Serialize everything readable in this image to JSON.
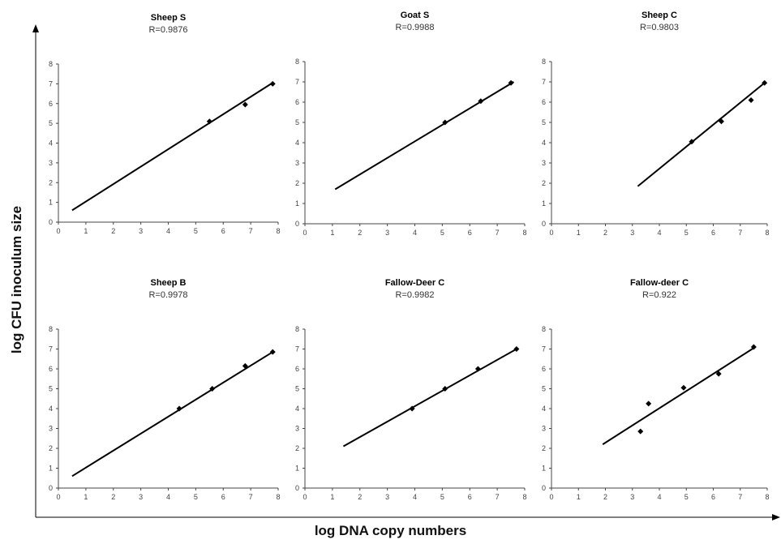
{
  "figure": {
    "ylabel": "log CFU inoculum size",
    "xlabel": "log DNA copy numbers"
  },
  "chart_data": [
    {
      "type": "scatter",
      "title": "Sheep S",
      "subtitle": "R=0.9876",
      "xlim": [
        0,
        8
      ],
      "ylim": [
        0,
        8
      ],
      "xticks": [
        0,
        1,
        2,
        3,
        4,
        5,
        6,
        7,
        8
      ],
      "yticks": [
        0,
        1,
        2,
        3,
        4,
        5,
        6,
        7,
        8
      ],
      "points": [
        [
          5.5,
          5.1
        ],
        [
          6.8,
          5.95
        ],
        [
          7.8,
          7.0
        ]
      ],
      "trendline": [
        [
          0.5,
          0.6
        ],
        [
          7.8,
          7.05
        ]
      ]
    },
    {
      "type": "scatter",
      "title": "Goat S",
      "subtitle": "R=0.9988",
      "xlim": [
        0,
        8
      ],
      "ylim": [
        0,
        8
      ],
      "xticks": [
        0,
        1,
        2,
        3,
        4,
        5,
        6,
        7,
        8
      ],
      "yticks": [
        0,
        1,
        2,
        3,
        4,
        5,
        6,
        7,
        8
      ],
      "points": [
        [
          5.1,
          5.0
        ],
        [
          6.4,
          6.05
        ],
        [
          7.5,
          6.95
        ]
      ],
      "trendline": [
        [
          1.1,
          1.7
        ],
        [
          7.6,
          7.0
        ]
      ]
    },
    {
      "type": "scatter",
      "title": "Sheep C",
      "subtitle": "R=0.9803",
      "xlim": [
        0,
        8
      ],
      "ylim": [
        0,
        8
      ],
      "xticks": [
        0,
        1,
        2,
        3,
        4,
        5,
        6,
        7,
        8
      ],
      "yticks": [
        0,
        1,
        2,
        3,
        4,
        5,
        6,
        7,
        8
      ],
      "points": [
        [
          5.2,
          4.05
        ],
        [
          6.3,
          5.05
        ],
        [
          7.4,
          6.1
        ],
        [
          7.9,
          6.95
        ]
      ],
      "trendline": [
        [
          3.2,
          1.85
        ],
        [
          7.9,
          6.95
        ]
      ]
    },
    {
      "type": "scatter",
      "title": "Sheep B",
      "subtitle": "R=0.9978",
      "xlim": [
        0,
        8
      ],
      "ylim": [
        0,
        8
      ],
      "xticks": [
        0,
        1,
        2,
        3,
        4,
        5,
        6,
        7,
        8
      ],
      "yticks": [
        0,
        1,
        2,
        3,
        4,
        5,
        6,
        7,
        8
      ],
      "points": [
        [
          4.4,
          4.0
        ],
        [
          5.6,
          5.0
        ],
        [
          6.8,
          6.15
        ],
        [
          7.8,
          6.85
        ]
      ],
      "trendline": [
        [
          0.5,
          0.6
        ],
        [
          7.8,
          6.85
        ]
      ]
    },
    {
      "type": "scatter",
      "title": "Fallow-Deer C",
      "subtitle": "R=0.9982",
      "xlim": [
        0,
        8
      ],
      "ylim": [
        0,
        8
      ],
      "xticks": [
        0,
        1,
        2,
        3,
        4,
        5,
        6,
        7,
        8
      ],
      "yticks": [
        0,
        1,
        2,
        3,
        4,
        5,
        6,
        7,
        8
      ],
      "points": [
        [
          3.9,
          4.0
        ],
        [
          5.1,
          5.0
        ],
        [
          6.3,
          6.0
        ],
        [
          7.7,
          7.0
        ]
      ],
      "trendline": [
        [
          1.4,
          2.1
        ],
        [
          7.7,
          7.0
        ]
      ]
    },
    {
      "type": "scatter",
      "title": "Fallow-deer C",
      "subtitle": "R=0.922",
      "xlim": [
        0,
        8
      ],
      "ylim": [
        0,
        8
      ],
      "xticks": [
        0,
        1,
        2,
        3,
        4,
        5,
        6,
        7,
        8
      ],
      "yticks": [
        0,
        1,
        2,
        3,
        4,
        5,
        6,
        7,
        8
      ],
      "points": [
        [
          3.3,
          2.85
        ],
        [
          3.6,
          4.25
        ],
        [
          4.9,
          5.05
        ],
        [
          6.2,
          5.75
        ],
        [
          7.5,
          7.1
        ]
      ],
      "trendline": [
        [
          1.9,
          2.2
        ],
        [
          7.5,
          7.05
        ]
      ]
    }
  ]
}
